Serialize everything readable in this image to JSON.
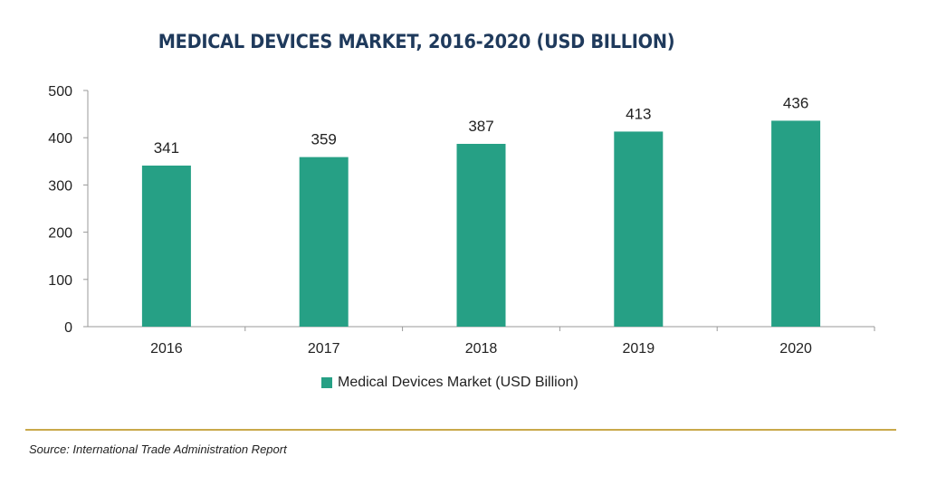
{
  "chart_data": {
    "type": "bar",
    "title": "MEDICAL DEVICES MARKET, 2016-2020 (USD BILLION)",
    "categories": [
      "2016",
      "2017",
      "2018",
      "2019",
      "2020"
    ],
    "series": [
      {
        "name": "Medical Devices Market (USD Billion)",
        "values": [
          341,
          359,
          387,
          413,
          436
        ]
      }
    ],
    "ylim": [
      0,
      500
    ],
    "yticks": [
      0,
      100,
      200,
      300,
      400,
      500
    ],
    "grid": false,
    "legend_position": "bottom",
    "bar_color": "#26a085",
    "xlabel": "",
    "ylabel": ""
  },
  "source": "Source: International Trade Administration Report",
  "colors": {
    "title": "#1f3a5c",
    "rule": "#c9a94a"
  }
}
